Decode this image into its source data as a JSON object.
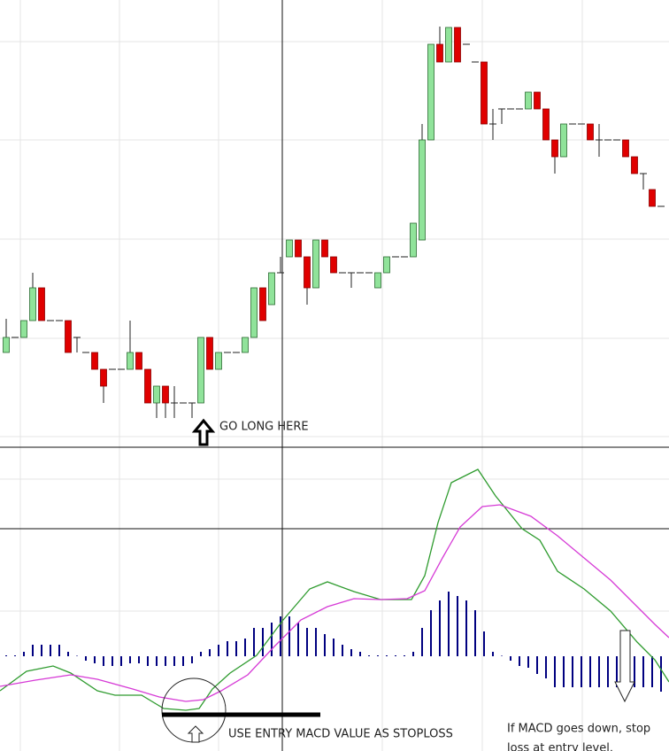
{
  "chart_data": [
    {
      "type": "candlestick",
      "annotation": "GO LONG HERE",
      "categories": [
        null,
        null,
        null,
        null,
        null,
        null,
        null,
        null,
        null,
        null,
        null,
        null,
        null,
        null,
        null,
        null,
        null,
        null,
        null,
        null,
        null,
        null,
        null,
        null,
        null,
        null,
        null,
        null,
        null,
        null,
        null,
        null,
        null,
        null,
        null,
        null,
        null,
        null,
        null,
        null,
        null,
        null,
        null,
        null,
        null,
        null,
        null,
        null,
        null,
        null,
        null,
        null,
        null,
        null,
        null,
        null,
        null,
        null,
        null,
        null,
        null,
        null,
        null,
        null,
        null,
        null,
        null,
        null,
        null,
        null,
        null,
        null,
        null,
        null,
        null
      ],
      "open": [
        10.2,
        11.9,
        11.9,
        13.8,
        17.5,
        13.8,
        13.8,
        13.8,
        11.9,
        10.2,
        10.2,
        8.3,
        8.3,
        8.3,
        8.3,
        10.2,
        8.3,
        4.5,
        6.4,
        4.5,
        4.5,
        4.5,
        4.5,
        11.9,
        8.3,
        10.2,
        10.2,
        10.2,
        11.9,
        17.5,
        15.6,
        19.2,
        21,
        22.9,
        21,
        17.5,
        22.9,
        21,
        19.2,
        19.2,
        19.2,
        19.2,
        17.5,
        19.2,
        21,
        21,
        21,
        22.9,
        34.2,
        45,
        43,
        46.9,
        45,
        43,
        43,
        36,
        37.7,
        37.7,
        37.7,
        37.7,
        39.6,
        37.7,
        34.2,
        32.3,
        36,
        36,
        36,
        34.2,
        34.2,
        34.2,
        34.2,
        32.3,
        30.4,
        28.6,
        26.7
      ],
      "high": [
        14,
        11.9,
        13.8,
        19.2,
        17.5,
        13.8,
        13.8,
        13.8,
        11.9,
        10.2,
        10.2,
        8.3,
        8.3,
        8.3,
        13.8,
        10.2,
        8.3,
        6.4,
        6.4,
        6.4,
        4.5,
        4.5,
        11.9,
        11.9,
        10.2,
        10.2,
        10.2,
        11.9,
        17.5,
        17.5,
        19.2,
        21,
        22.9,
        22.9,
        21,
        22.9,
        22.9,
        21,
        19.2,
        19.2,
        19.2,
        19.2,
        19.2,
        21,
        21,
        21,
        24.8,
        36,
        45,
        47,
        46.9,
        46.9,
        45,
        43,
        43,
        37.7,
        37.7,
        37.7,
        37.7,
        39.6,
        39.6,
        37.7,
        34.2,
        36,
        36,
        36,
        36,
        36,
        34.2,
        34.2,
        34.2,
        32.3,
        30.4,
        28.6,
        26.7
      ],
      "low": [
        10.2,
        11.9,
        11.9,
        13.8,
        13.8,
        13.8,
        13.8,
        10.2,
        10.2,
        10.2,
        8.3,
        4.5,
        8.3,
        8.3,
        8.3,
        8.3,
        4.5,
        2.8,
        2.8,
        2.8,
        4.5,
        2.8,
        4.5,
        8.3,
        8.3,
        10.2,
        10.2,
        10.2,
        11.9,
        13.8,
        15.6,
        19.2,
        21,
        21,
        15.6,
        17.5,
        21,
        19.2,
        19.2,
        17.5,
        19.2,
        19.2,
        17.5,
        19.2,
        21,
        21,
        21,
        22.9,
        34.2,
        43,
        43,
        43,
        45,
        43,
        36,
        34.2,
        36,
        37.7,
        37.7,
        37.7,
        37.7,
        34.2,
        30.4,
        32.3,
        36,
        36,
        34.2,
        32.3,
        34.2,
        34.2,
        32.3,
        30.4,
        28.6,
        26.7,
        26.7
      ],
      "close": [
        11.9,
        11.9,
        13.8,
        17.5,
        13.8,
        13.8,
        13.8,
        10.2,
        11.9,
        10.2,
        8.3,
        6.4,
        8.3,
        8.3,
        10.2,
        8.3,
        4.5,
        6.4,
        4.5,
        4.5,
        4.5,
        4.5,
        11.9,
        8.3,
        10.2,
        10.2,
        10.2,
        11.9,
        17.5,
        13.8,
        19.2,
        19.2,
        22.9,
        21,
        17.5,
        22.9,
        21,
        19.2,
        19.2,
        19.2,
        19.2,
        19.2,
        19.2,
        21,
        21,
        21,
        24.8,
        34.2,
        45,
        43,
        46.9,
        43,
        45,
        43,
        36,
        36,
        37.7,
        37.7,
        37.7,
        39.6,
        37.7,
        34.2,
        32.3,
        36,
        36,
        36,
        34.2,
        34.2,
        34.2,
        34.2,
        32.3,
        30.4,
        30.4,
        26.7,
        26.7
      ],
      "up_color": "#90e39a",
      "down_color": "#e00000",
      "xlim": [
        -0.7,
        74.9
      ],
      "ylim": [
        0,
        50
      ]
    },
    {
      "type": "macd",
      "annotations": [
        "USE ENTRY MACD VALUE AS STOPLOSS",
        "If MACD goes down, stop",
        "loss at entry level."
      ],
      "histogram": {
        "color": "#000080",
        "values": [
          0.1,
          0.1,
          0.5,
          1.3,
          1.3,
          1.3,
          1.3,
          0.5,
          0,
          -0.5,
          -0.8,
          -1.1,
          -1.1,
          -1.1,
          -0.8,
          -0.8,
          -1.1,
          -1.1,
          -1.1,
          -1.1,
          -1.1,
          -0.8,
          0.5,
          0.8,
          1.3,
          1.7,
          1.7,
          2,
          3.2,
          3.2,
          3.8,
          4.5,
          4.5,
          3.8,
          3.2,
          3.2,
          2.5,
          2,
          1.3,
          0.8,
          0.5,
          0.1,
          0.1,
          0.1,
          0.1,
          0.1,
          0.5,
          3.2,
          5.2,
          6.3,
          7.3,
          6.8,
          6.3,
          5.2,
          2.8,
          0.5,
          0,
          -0.5,
          -1.1,
          -1.3,
          -2,
          -2.5,
          -3.5,
          -3.5,
          -3.5,
          -3.5,
          -3.5,
          -3.5,
          -3.5,
          -3.5,
          -3.5,
          -3.5,
          -3.5,
          -3.5,
          -4
        ]
      },
      "series": [
        {
          "color": "#2e9b2e",
          "x": [
            -0.7,
            2.3,
            5.3,
            7.3,
            10.3,
            12.3,
            15.3,
            17.8,
            20.3,
            21.8,
            23.3,
            25.3,
            28.3,
            31.3,
            34.3,
            36.3,
            39.3,
            42.3,
            45.8,
            47.3,
            48.8,
            50.3,
            53.3,
            55.3,
            58.3,
            60.3,
            62.3,
            65.3,
            68.3,
            71.3,
            73.3,
            74.9
          ],
          "values": [
            -3.9,
            -1.7,
            -1.1,
            -1.9,
            -3.9,
            -4.4,
            -4.4,
            -5.9,
            -6.1,
            -5.9,
            -3.7,
            -1.9,
            0.1,
            4.1,
            7.6,
            8.4,
            7.3,
            6.4,
            6.4,
            9.1,
            15.1,
            19.6,
            21.1,
            18.1,
            14.4,
            13.1,
            9.6,
            7.6,
            5.1,
            1.6,
            -0.4,
            -2.9
          ]
        },
        {
          "color": "#d63ad6",
          "x": [
            -0.7,
            3.3,
            7.3,
            10.3,
            14.3,
            17.3,
            20.3,
            22.3,
            24.3,
            27.3,
            30.3,
            33.3,
            36.3,
            39.3,
            42.3,
            45.3,
            47.3,
            49.3,
            51.3,
            53.8,
            55.8,
            59.3,
            62.3,
            65.3,
            68.3,
            71.3,
            73.3,
            74.9
          ],
          "values": [
            -3.4,
            -2.7,
            -2.1,
            -2.6,
            -3.7,
            -4.6,
            -5.1,
            -4.9,
            -3.9,
            -2.1,
            1.1,
            4.1,
            5.6,
            6.5,
            6.4,
            6.5,
            7.4,
            11.1,
            14.6,
            16.9,
            17.1,
            15.8,
            13.6,
            11.1,
            8.6,
            5.6,
            3.6,
            2.1
          ]
        }
      ],
      "xlim": [
        -0.7,
        74.9
      ],
      "ylim": [
        -10,
        23
      ]
    }
  ]
}
